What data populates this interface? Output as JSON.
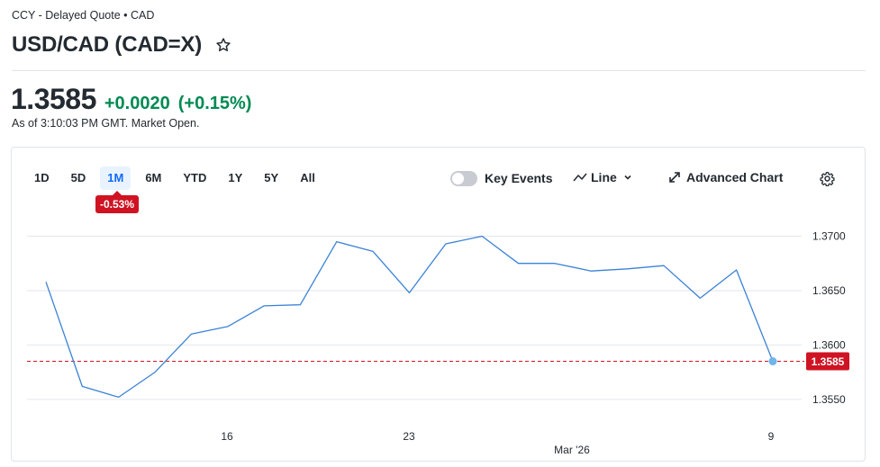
{
  "header": {
    "meta": "CCY - Delayed Quote • CAD",
    "title": "USD/CAD (CAD=X)",
    "star_icon": "star-icon"
  },
  "quote": {
    "price": "1.3585",
    "change": "+0.0020",
    "change_percent": "(+0.15%)",
    "as_of": "As of 3:10:03 PM GMT. Market Open.",
    "change_color": "#008a52"
  },
  "toolbar": {
    "ranges": [
      "1D",
      "5D",
      "1M",
      "6M",
      "YTD",
      "1Y",
      "5Y",
      "All"
    ],
    "active_range": "1M",
    "range_performance": "-0.53%",
    "key_events_label": "Key Events",
    "key_events_enabled": false,
    "chart_type_label": "Line",
    "advanced_chart_label": "Advanced Chart"
  },
  "colors": {
    "line": "#3b82d6",
    "negative": "#cf1322",
    "active_bg": "#e9f3ff",
    "active_fg": "#0f69ff"
  },
  "chart_data": {
    "type": "line",
    "series": [
      {
        "values": [
          1.3658,
          1.3562,
          1.3552,
          1.3575,
          1.361,
          1.3617,
          1.3636,
          1.3637,
          1.3695,
          1.3686,
          1.3648,
          1.3693,
          1.37,
          1.3675,
          1.3675,
          1.3668,
          1.367,
          1.3673,
          1.3643,
          1.3669,
          1.3585
        ]
      }
    ],
    "x_tick_labels": [
      "16",
      "23",
      "9"
    ],
    "x_sub_label": "Mar '26",
    "y_tick_labels": [
      "1.3700",
      "1.3650",
      "1.3600",
      "1.3550"
    ],
    "ylim": [
      1.3535,
      1.3712
    ],
    "reference_value": 1.3585,
    "reference_label": "1.3585",
    "grid": true
  }
}
